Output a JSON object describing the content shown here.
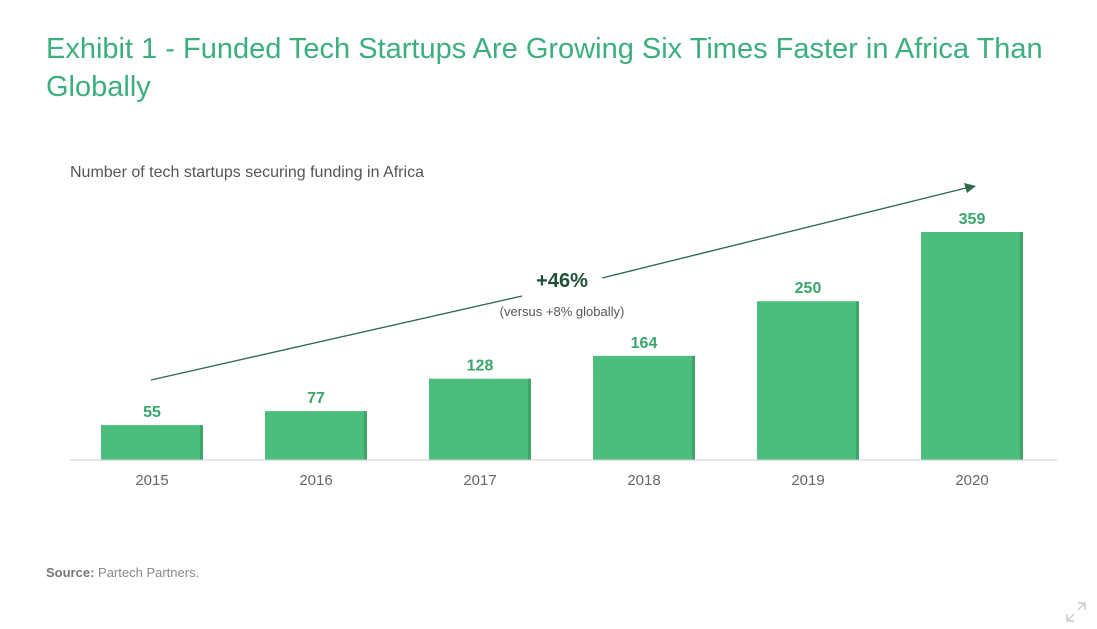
{
  "title": "Exhibit 1 - Funded Tech Startups Are Growing Six Times Faster in Africa Than Globally",
  "subtitle": "Number of tech startups securing funding in Africa",
  "annotation": {
    "growth": "+46%",
    "note": "(versus +8% globally)"
  },
  "source": {
    "label": "Source:",
    "text": "Partech Partners."
  },
  "colors": {
    "title": "#3dae7e",
    "bar": "#4cbd7c",
    "label": "#3aa56b",
    "arrow": "#2e6b4a"
  },
  "chart_data": {
    "type": "bar",
    "categories": [
      "2015",
      "2016",
      "2017",
      "2018",
      "2019",
      "2020"
    ],
    "values": [
      55,
      77,
      128,
      164,
      250,
      359
    ],
    "title": "Exhibit 1 - Funded Tech Startups Are Growing Six Times Faster in Africa Than Globally",
    "ylabel": "",
    "xlabel": "",
    "ylim": [
      0,
      359
    ],
    "grid": false,
    "legend": "none"
  }
}
